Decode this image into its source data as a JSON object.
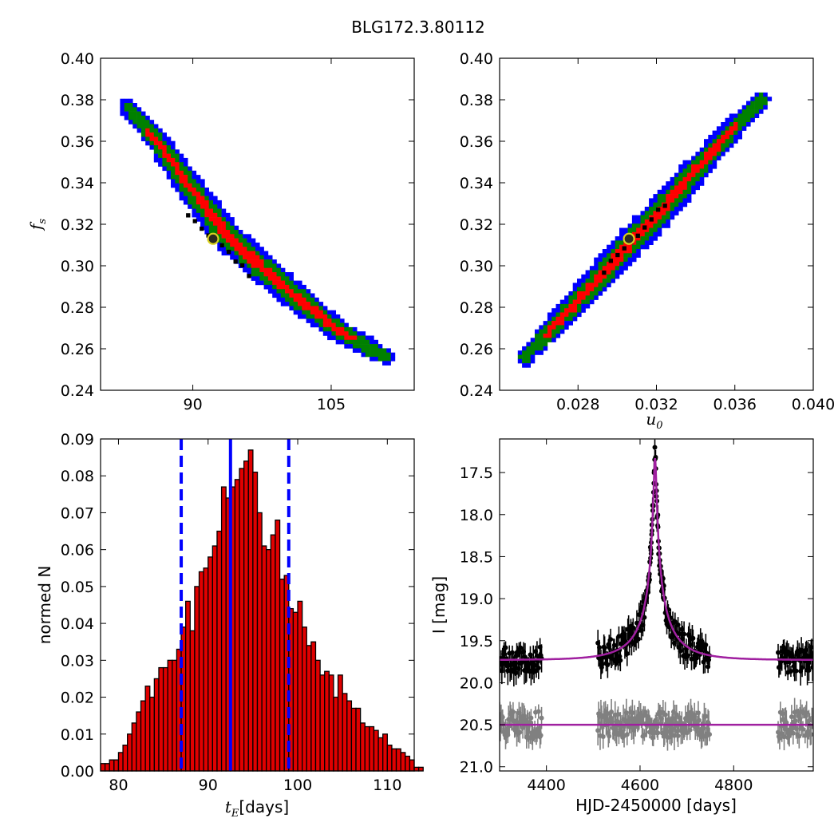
{
  "figure": {
    "title": "BLG172.3.80112"
  },
  "colors": {
    "blue": "#0000ff",
    "green": "#008000",
    "red": "#ff0000",
    "black": "#000000",
    "marker_fill": "#2a2a1e",
    "marker_ring": "#d8d020",
    "hist_fill": "#e00000",
    "hist_vline": "#0000ff",
    "lc_points": "#000000",
    "lc_offset_points": "#808080",
    "lc_model": "#a020a0"
  },
  "chart_data": [
    {
      "id": "tE_vs_fs",
      "type": "heatmap",
      "xlabel": "",
      "ylabel": "f_s",
      "xlim": [
        80,
        114
      ],
      "ylim": [
        0.24,
        0.4
      ],
      "xticks": [
        {
          "v": 90,
          "label": "90"
        },
        {
          "v": 105,
          "label": "105"
        }
      ],
      "yticks": [
        {
          "v": 0.24,
          "label": "0.24"
        },
        {
          "v": 0.26,
          "label": "0.26"
        },
        {
          "v": 0.28,
          "label": "0.28"
        },
        {
          "v": 0.3,
          "label": "0.30"
        },
        {
          "v": 0.32,
          "label": "0.32"
        },
        {
          "v": 0.34,
          "label": "0.34"
        },
        {
          "v": 0.36,
          "label": "0.36"
        },
        {
          "v": 0.38,
          "label": "0.38"
        },
        {
          "v": 0.4,
          "label": "0.40"
        }
      ],
      "contour_levels": [
        "blue",
        "green",
        "red",
        "black"
      ],
      "ridge": [
        [
          82.9,
          0.377
        ],
        [
          86.5,
          0.358
        ],
        [
          90.0,
          0.336
        ],
        [
          94.0,
          0.313
        ],
        [
          98.0,
          0.297
        ],
        [
          102.0,
          0.282
        ],
        [
          106.0,
          0.268
        ],
        [
          111.0,
          0.256
        ]
      ],
      "best_fit": {
        "x": 92.2,
        "y": 0.313
      }
    },
    {
      "id": "u0_vs_fs",
      "type": "heatmap",
      "xlabel": "u_0",
      "ylabel": "",
      "xlim": [
        0.024,
        0.04
      ],
      "ylim": [
        0.24,
        0.4
      ],
      "xticks": [
        {
          "v": 0.028,
          "label": "0.028"
        },
        {
          "v": 0.032,
          "label": "0.032"
        },
        {
          "v": 0.036,
          "label": "0.036"
        },
        {
          "v": 0.04,
          "label": "0.040"
        }
      ],
      "yticks": [
        {
          "v": 0.24,
          "label": "0.24"
        },
        {
          "v": 0.26,
          "label": "0.26"
        },
        {
          "v": 0.28,
          "label": "0.28"
        },
        {
          "v": 0.3,
          "label": "0.30"
        },
        {
          "v": 0.32,
          "label": "0.32"
        },
        {
          "v": 0.34,
          "label": "0.34"
        },
        {
          "v": 0.36,
          "label": "0.36"
        },
        {
          "v": 0.38,
          "label": "0.38"
        },
        {
          "v": 0.4,
          "label": "0.40"
        }
      ],
      "contour_levels": [
        "blue",
        "green",
        "red",
        "black"
      ],
      "ridge": [
        [
          0.0253,
          0.256
        ],
        [
          0.027,
          0.273
        ],
        [
          0.029,
          0.293
        ],
        [
          0.0305,
          0.309
        ],
        [
          0.032,
          0.324
        ],
        [
          0.034,
          0.346
        ],
        [
          0.0355,
          0.362
        ],
        [
          0.0374,
          0.38
        ]
      ],
      "best_fit": {
        "x": 0.0306,
        "y": 0.313
      }
    },
    {
      "id": "tE_histogram",
      "type": "bar",
      "xlabel": "[days]",
      "xlabel_symbol": "t_E",
      "ylabel": "normed N",
      "xlim": [
        78,
        113
      ],
      "ylim": [
        0,
        0.09
      ],
      "xticks": [
        {
          "v": 80,
          "label": "80"
        },
        {
          "v": 90,
          "label": "90"
        },
        {
          "v": 100,
          "label": "100"
        },
        {
          "v": 110,
          "label": "110"
        }
      ],
      "yticks": [
        {
          "v": 0,
          "label": "0.00"
        },
        {
          "v": 0.01,
          "label": "0.01"
        },
        {
          "v": 0.02,
          "label": "0.02"
        },
        {
          "v": 0.03,
          "label": "0.03"
        },
        {
          "v": 0.04,
          "label": "0.04"
        },
        {
          "v": 0.05,
          "label": "0.05"
        },
        {
          "v": 0.06,
          "label": "0.06"
        },
        {
          "v": 0.07,
          "label": "0.07"
        },
        {
          "v": 0.08,
          "label": "0.08"
        },
        {
          "v": 0.09,
          "label": "0.09"
        }
      ],
      "bin_start": 78.0,
      "bin_width": 0.5,
      "values": [
        0.002,
        0.002,
        0.003,
        0.003,
        0.005,
        0.007,
        0.01,
        0.013,
        0.016,
        0.019,
        0.023,
        0.02,
        0.025,
        0.028,
        0.028,
        0.03,
        0.03,
        0.033,
        0.039,
        0.046,
        0.038,
        0.05,
        0.054,
        0.055,
        0.058,
        0.061,
        0.065,
        0.077,
        0.074,
        0.077,
        0.079,
        0.082,
        0.084,
        0.087,
        0.081,
        0.07,
        0.061,
        0.06,
        0.064,
        0.068,
        0.052,
        0.053,
        0.044,
        0.043,
        0.046,
        0.039,
        0.034,
        0.035,
        0.03,
        0.026,
        0.027,
        0.026,
        0.02,
        0.026,
        0.021,
        0.019,
        0.017,
        0.017,
        0.013,
        0.012,
        0.012,
        0.011,
        0.009,
        0.01,
        0.007,
        0.006,
        0.006,
        0.005,
        0.004,
        0.003,
        0.001,
        0.001
      ],
      "vlines": [
        {
          "x": 87.0,
          "style": "dashed"
        },
        {
          "x": 92.5,
          "style": "solid"
        },
        {
          "x": 99.0,
          "style": "dashed"
        }
      ]
    },
    {
      "id": "light_curve",
      "type": "scatter",
      "xlabel": "HJD-2450000 [days]",
      "ylabel": "I [mag]",
      "xlim": [
        4300,
        4970
      ],
      "ylim": [
        21.05,
        17.1
      ],
      "y_inverted": true,
      "xticks": [
        {
          "v": 4400,
          "label": "4400"
        },
        {
          "v": 4600,
          "label": "4600"
        },
        {
          "v": 4800,
          "label": "4800"
        }
      ],
      "yticks": [
        {
          "v": 17.5,
          "label": "17.5"
        },
        {
          "v": 18.0,
          "label": "18.0"
        },
        {
          "v": 18.5,
          "label": "18.5"
        },
        {
          "v": 19.0,
          "label": "19.0"
        },
        {
          "v": 19.5,
          "label": "19.5"
        },
        {
          "v": 20.0,
          "label": "20.0"
        },
        {
          "v": 20.5,
          "label": "20.5"
        },
        {
          "v": 21.0,
          "label": "21.0"
        }
      ],
      "model": {
        "baseline": 19.73,
        "peak_time": 4632,
        "peak_mag": 17.33,
        "tE": 92.5
      },
      "residual_baseline": 20.5,
      "observing_seasons": [
        [
          4300,
          4390
        ],
        [
          4510,
          4750
        ],
        [
          4895,
          4970
        ]
      ]
    }
  ]
}
